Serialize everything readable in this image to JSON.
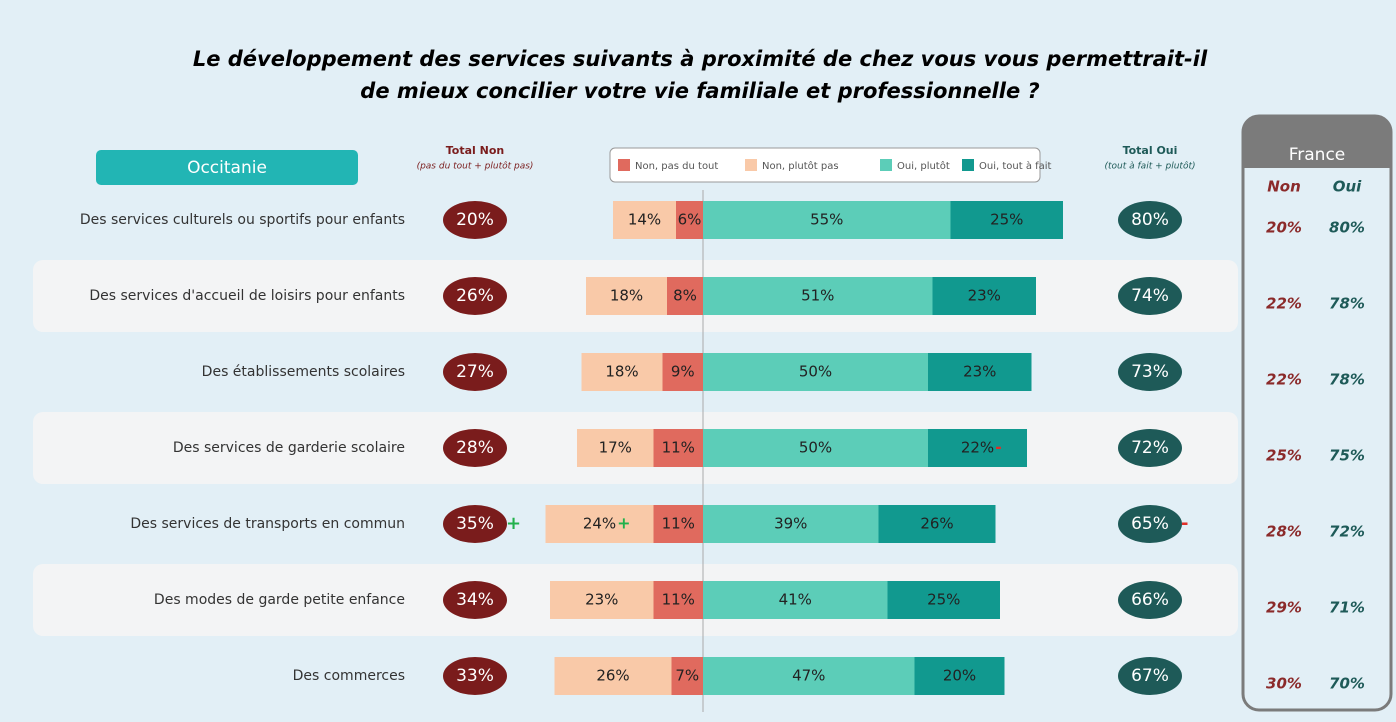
{
  "chart_data": {
    "type": "diverging_bar",
    "title": [
      "Le développement des services suivants à proximité de chez vous vous permettrait-il",
      "de mieux concilier votre vie familiale et professionnelle ?"
    ],
    "region": "Occitanie",
    "total_non_title": "Total Non",
    "total_non_subtitle": "(pas du tout + plutôt pas)",
    "total_oui_title": "Total Oui",
    "total_oui_subtitle": "(tout à fait + plutôt)",
    "categories": [
      "Des services culturels ou sportifs pour enfants",
      "Des services d'accueil de loisirs pour enfants",
      "Des établissements scolaires",
      "Des services de garderie scolaire",
      "Des services de transports en commun",
      "Des modes de garde petite enfance",
      "Des commerces"
    ],
    "series": [
      {
        "name": "Non, pas du tout",
        "color": "#e06a5e",
        "side": "left",
        "values": [
          6,
          8,
          9,
          11,
          11,
          11,
          7
        ],
        "value_labels": [
          "6%",
          "8%",
          "9%",
          "11%",
          "11%",
          "11%",
          "7%"
        ],
        "signs": [
          null,
          null,
          null,
          null,
          null,
          null,
          null
        ]
      },
      {
        "name": "Non, plutôt pas",
        "color": "#f9c9a8",
        "side": "left",
        "values": [
          14,
          18,
          18,
          17,
          24,
          23,
          26
        ],
        "value_labels": [
          "14%",
          "18%",
          "18%",
          "17%",
          "24%",
          "23%",
          "26%"
        ],
        "signs": [
          null,
          null,
          null,
          null,
          "+",
          null,
          null
        ]
      },
      {
        "name": "Oui, plutôt",
        "color": "#5ccdb8",
        "side": "right",
        "values": [
          55,
          51,
          50,
          50,
          39,
          41,
          47
        ],
        "value_labels": [
          "55%",
          "51%",
          "50%",
          "50%",
          "39%",
          "41%",
          "47%"
        ],
        "signs": [
          null,
          null,
          null,
          null,
          null,
          null,
          null
        ]
      },
      {
        "name": "Oui, tout à fait",
        "color": "#11998f",
        "side": "right",
        "values": [
          25,
          23,
          23,
          22,
          26,
          25,
          20
        ],
        "value_labels": [
          "25%",
          "23%",
          "23%",
          "22%",
          "26%",
          "25%",
          "20%"
        ],
        "signs": [
          null,
          null,
          null,
          "-",
          null,
          null,
          null
        ]
      }
    ],
    "total_non": {
      "color": "#7a1c1c",
      "values": [
        20,
        26,
        27,
        28,
        35,
        34,
        33
      ],
      "value_labels": [
        "20%",
        "26%",
        "27%",
        "28%",
        "35%",
        "34%",
        "33%"
      ],
      "signs": [
        null,
        null,
        null,
        null,
        "+",
        null,
        null
      ]
    },
    "total_oui": {
      "color": "#1e5a58",
      "values": [
        80,
        74,
        73,
        72,
        65,
        66,
        67
      ],
      "value_labels": [
        "80%",
        "74%",
        "73%",
        "72%",
        "65%",
        "66%",
        "67%"
      ],
      "signs": [
        null,
        null,
        null,
        null,
        "-",
        null,
        null
      ]
    },
    "sign_colors": {
      "+": "#22b14c",
      "-": "#e0302a"
    },
    "france": {
      "title": "France",
      "non_header": "Non",
      "oui_header": "Oui",
      "non": {
        "color": "#8b2a2a",
        "values": [
          20,
          22,
          22,
          25,
          28,
          29,
          30
        ],
        "value_labels": [
          "20%",
          "22%",
          "22%",
          "25%",
          "28%",
          "29%",
          "30%"
        ]
      },
      "oui": {
        "color": "#1e5a58",
        "values": [
          80,
          78,
          78,
          75,
          72,
          71,
          70
        ],
        "value_labels": [
          "80%",
          "78%",
          "78%",
          "75%",
          "72%",
          "71%",
          "70%"
        ]
      }
    }
  }
}
